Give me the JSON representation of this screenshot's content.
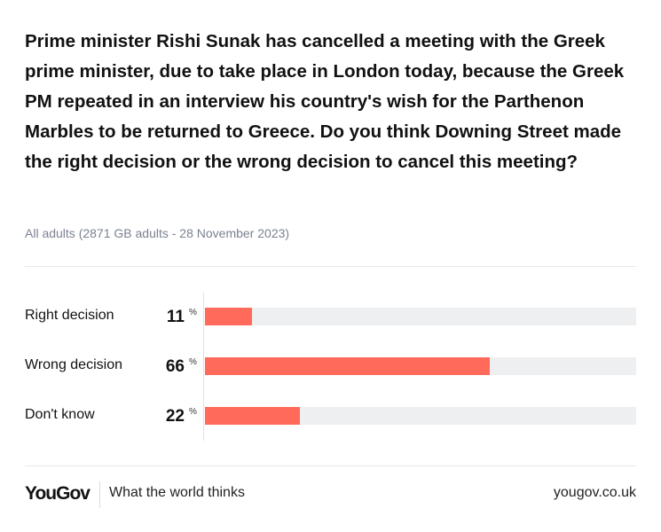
{
  "chart_data": {
    "type": "bar",
    "orientation": "horizontal",
    "title": "Prime minister Rishi Sunak has cancelled a meeting with the Greek prime minister, due to take place in London today, because the Greek PM repeated in an interview his country's wish for the Parthenon Marbles to be returned to Greece. Do you think Downing Street made the right decision or the wrong decision to cancel this meeting?",
    "subtitle": "All adults (2871 GB adults - 28 November 2023)",
    "categories": [
      "Right decision",
      "Wrong decision",
      "Don't know"
    ],
    "values": [
      11,
      66,
      22
    ],
    "unit": "%",
    "xlim": [
      0,
      100
    ],
    "bar_color": "#ff6a5a",
    "track_color": "#eeeff0"
  },
  "footer": {
    "logo": "YouGov",
    "tagline": "What the world thinks",
    "url": "yougov.co.uk"
  }
}
